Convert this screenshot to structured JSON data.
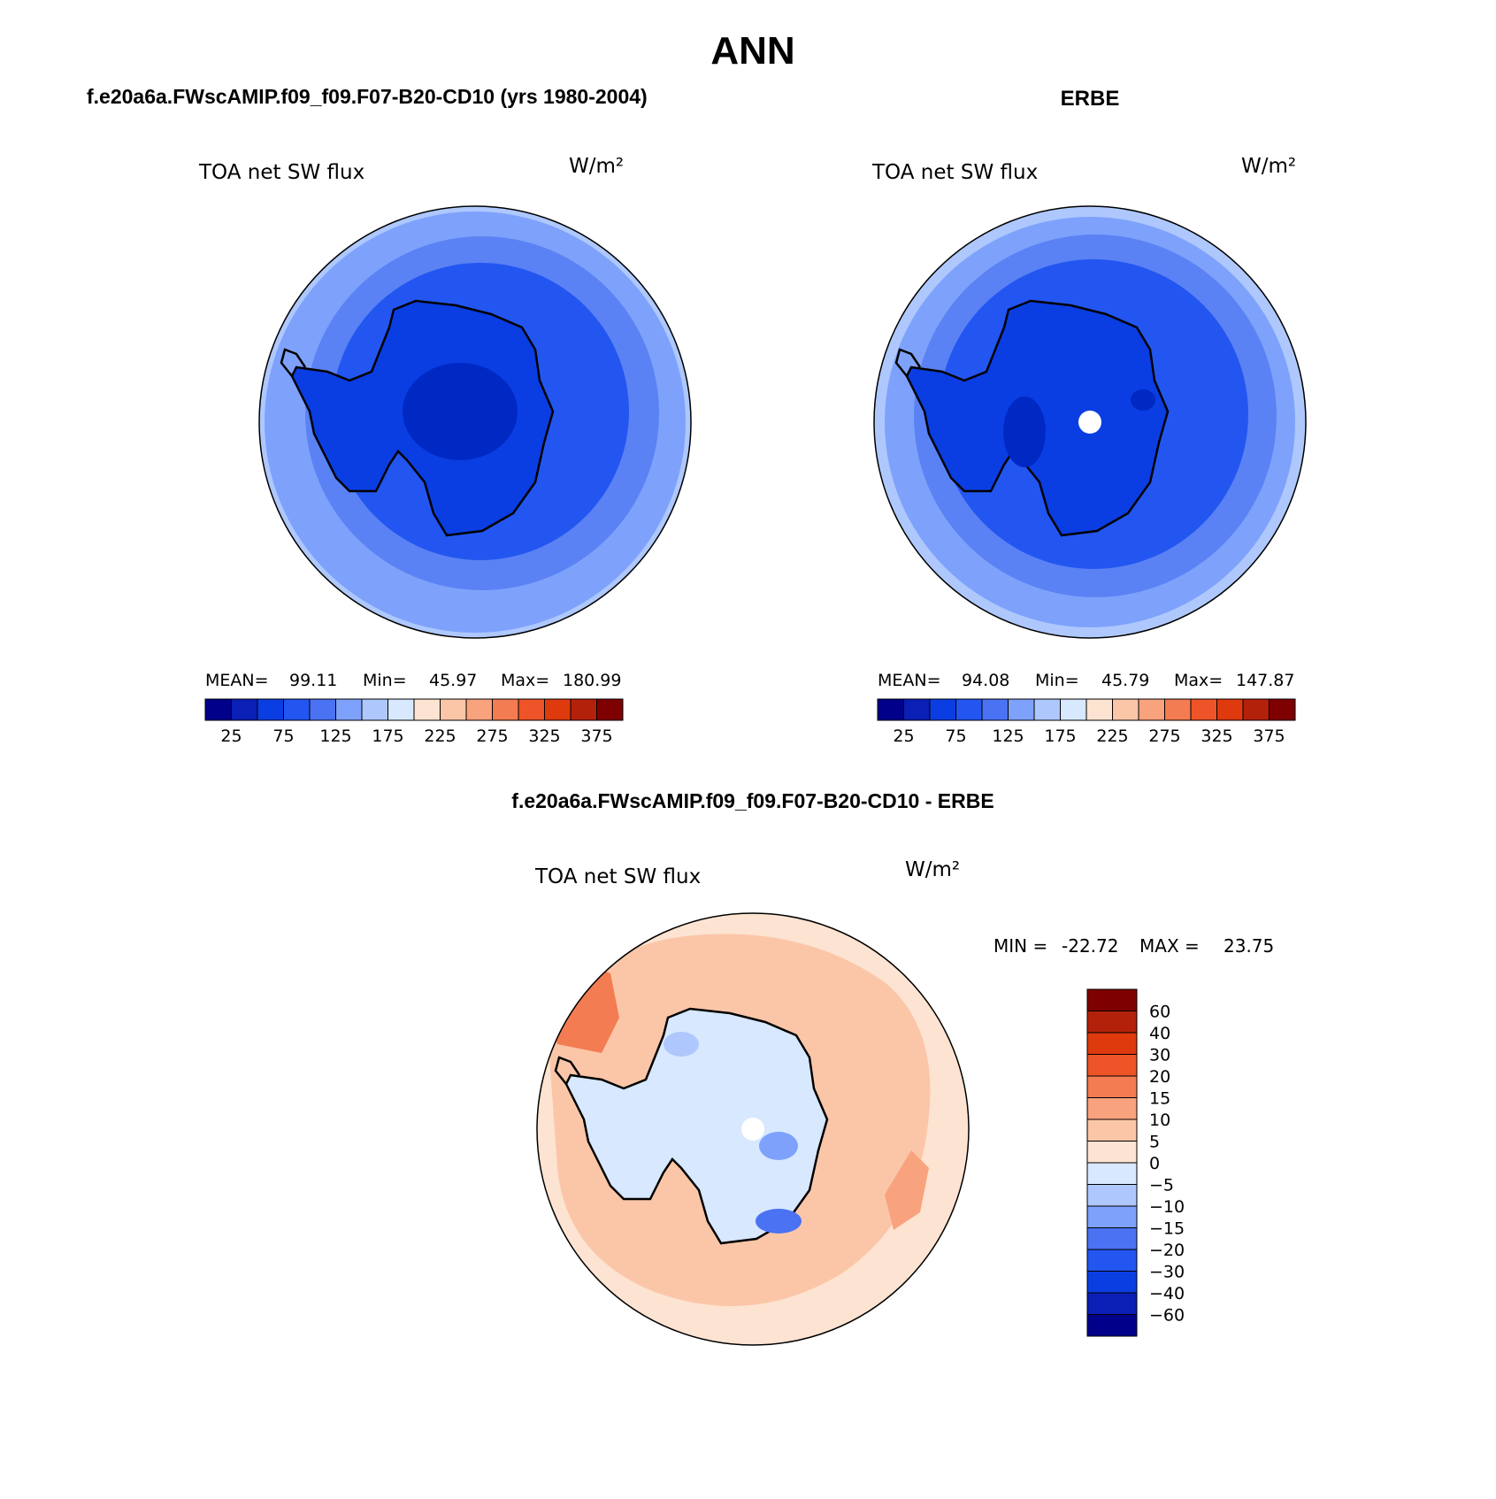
{
  "header": {
    "season": "ANN",
    "model_panel_title": "f.e20a6a.FWscAMIP.f09_f09.F07-B20-CD10 (yrs 1980-2004)",
    "obs_panel_title": "ERBE",
    "diff_panel_title": "f.e20a6a.FWscAMIP.f09_f09.F07-B20-CD10 - ERBE"
  },
  "colors": {
    "ocean_outer": "#7ea2fb",
    "ocean_mid": "#5a82f4",
    "land": "#0a3ee2",
    "land_core": "#0029c4",
    "pole": "#ffffff"
  },
  "chart_data": [
    {
      "type": "contour-map",
      "name": "model",
      "variable": "TOA net SW flux",
      "units": "W/m²",
      "stats": {
        "mean_label": "MEAN=",
        "mean": "99.11",
        "min_label": "Min=",
        "min": "45.97",
        "max_label": "Max=",
        "max": "180.99"
      },
      "colorbar": {
        "colors": [
          "#00008b",
          "#0a1fb5",
          "#0a3ee2",
          "#2356f0",
          "#4a72f3",
          "#7ea2fb",
          "#aec8fd",
          "#d7e8ff",
          "#fde3d1",
          "#fbc6a8",
          "#f8a27e",
          "#f47c52",
          "#ee5427",
          "#de3a0e",
          "#b4210a",
          "#7f0000"
        ],
        "tick_labels": [
          "25",
          "75",
          "125",
          "175",
          "225",
          "275",
          "325",
          "375"
        ]
      }
    },
    {
      "type": "contour-map",
      "name": "obs",
      "variable": "TOA net SW flux",
      "units": "W/m²",
      "stats": {
        "mean_label": "MEAN=",
        "mean": "94.08",
        "min_label": "Min=",
        "min": "45.79",
        "max_label": "Max=",
        "max": "147.87"
      },
      "colorbar": {
        "colors": [
          "#00008b",
          "#0a1fb5",
          "#0a3ee2",
          "#2356f0",
          "#4a72f3",
          "#7ea2fb",
          "#aec8fd",
          "#d7e8ff",
          "#fde3d1",
          "#fbc6a8",
          "#f8a27e",
          "#f47c52",
          "#ee5427",
          "#de3a0e",
          "#b4210a",
          "#7f0000"
        ],
        "tick_labels": [
          "25",
          "75",
          "125",
          "175",
          "225",
          "275",
          "325",
          "375"
        ]
      }
    },
    {
      "type": "contour-map",
      "name": "difference",
      "variable": "TOA net SW flux",
      "units": "W/m²",
      "stats": {
        "min_label": "MIN =",
        "min": "-22.72",
        "max_label": "MAX =",
        "max": "23.75"
      },
      "colorbar": {
        "colors": [
          "#7f0000",
          "#b4210a",
          "#de3a0e",
          "#ee5427",
          "#f47c52",
          "#f8a27e",
          "#fbc6a8",
          "#fde3d1",
          "#d7e8ff",
          "#aec8fd",
          "#7ea2fb",
          "#4a72f3",
          "#2356f0",
          "#0a3ee2",
          "#0a1fb5",
          "#00008b"
        ],
        "tick_labels": [
          "60",
          "40",
          "30",
          "20",
          "15",
          "10",
          "5",
          "0",
          "−5",
          "−10",
          "−15",
          "−20",
          "−30",
          "−40",
          "−60"
        ]
      }
    }
  ]
}
